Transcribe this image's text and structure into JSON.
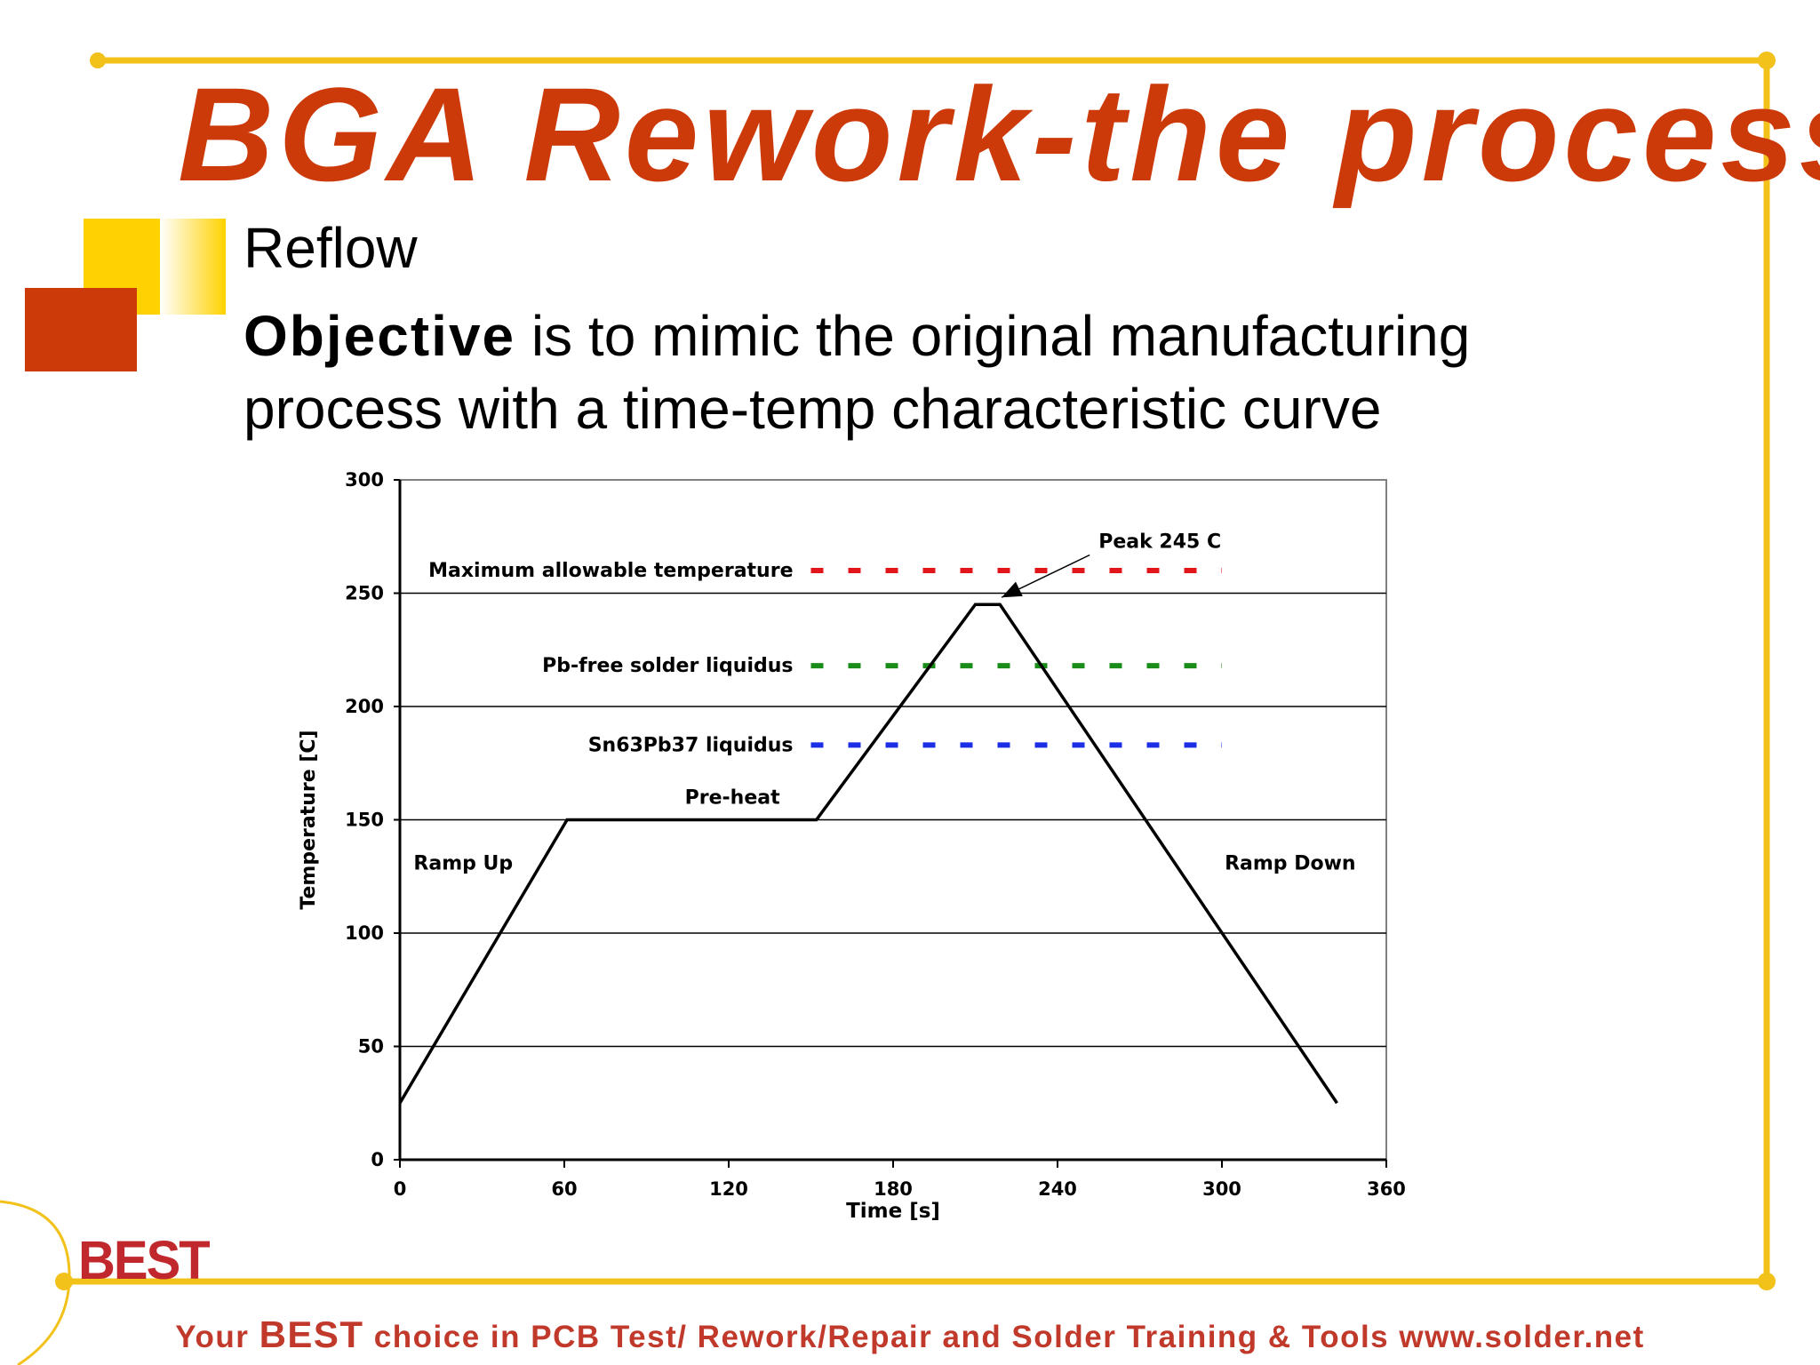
{
  "slide": {
    "title": "BGA Rework-the process",
    "subtitle": "Reflow",
    "objective_bold": "Objective",
    "objective_rest": " is to mimic the original manufacturing",
    "objective_line2": "process with a time-temp characteristic curve"
  },
  "footer": {
    "part1": "Your ",
    "best": "BEST",
    "part2": " choice in PCB Test/ Rework/Repair and Solder Training & Tools www.solder.net"
  },
  "logo": {
    "text": "BEST",
    "icon": "best-logo"
  },
  "colors": {
    "title": "#cc3a0a",
    "frame": "#f2c21b",
    "square_yellow": "#ffd200",
    "square_red": "#cc3a0a",
    "footer": "#c0392b",
    "max_temp_line": "#e0161b",
    "pb_free_line": "#1a8c1a",
    "snpb_line": "#1c2fe6"
  },
  "chart_data": {
    "type": "line",
    "title": "",
    "xlabel": "Time [s]",
    "ylabel": "Temperature [C]",
    "xlim": [
      0,
      360
    ],
    "ylim": [
      0,
      300
    ],
    "xticks": [
      0,
      60,
      120,
      180,
      240,
      300,
      360
    ],
    "yticks": [
      0,
      50,
      100,
      150,
      200,
      250,
      300
    ],
    "grid": "horizontal",
    "series": [
      {
        "x": [
          0,
          61,
          152,
          210,
          219,
          342
        ],
        "y": [
          25,
          150,
          150,
          245,
          245,
          25
        ]
      }
    ],
    "reference_lines": [
      {
        "label": "Maximum allowable temperature",
        "y": 260,
        "x_range": [
          150,
          300
        ],
        "style": "dashed",
        "color": "#e0161b"
      },
      {
        "label": "Pb-free solder liquidus",
        "y": 218,
        "x_range": [
          150,
          300
        ],
        "style": "dashed",
        "color": "#1a8c1a"
      },
      {
        "label": "Sn63Pb37 liquidus",
        "y": 183,
        "x_range": [
          150,
          300
        ],
        "style": "dashed",
        "color": "#1c2fe6"
      }
    ],
    "annotations": [
      {
        "text": "Ramp Up",
        "x": 5,
        "y": 128
      },
      {
        "text": "Pre-heat",
        "x": 104,
        "y": 157
      },
      {
        "text": "Ramp Down",
        "x": 301,
        "y": 128
      },
      {
        "text": "Peak 245 C",
        "x": 255,
        "y": 270,
        "arrow_to": [
          217,
          245
        ]
      }
    ]
  }
}
